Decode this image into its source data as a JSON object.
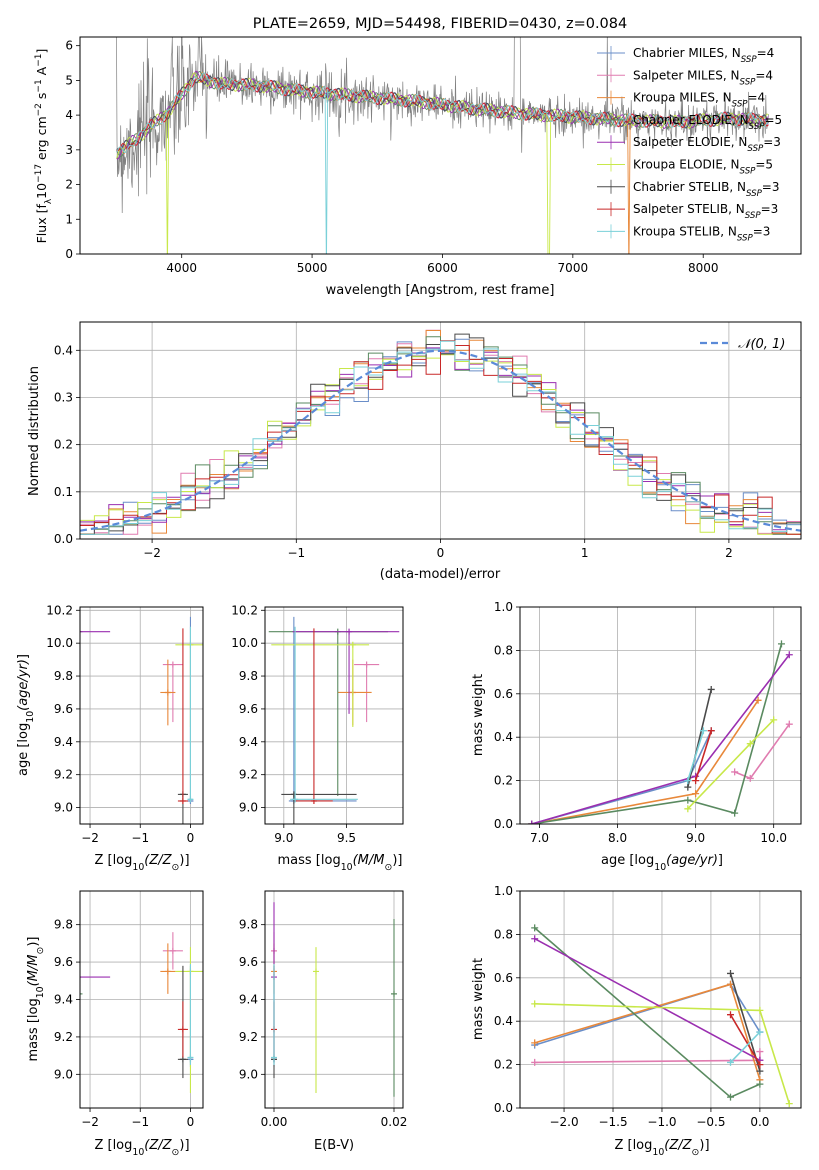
{
  "colors": {
    "Chabrier MILES": "#6a8ec8",
    "Salpeter MILES": "#e07cb0",
    "Kroupa MILES": "#e8883a",
    "Chabrier ELODIE": "#5a8a60",
    "Salpeter ELODIE": "#9a2fb0",
    "Kroupa ELODIE": "#c8e84a",
    "Chabrier STELIB": "#4a4a4a",
    "Salpeter STELIB": "#c82828",
    "Kroupa STELIB": "#7ad0d8",
    "data": "#808080",
    "gaussian": "#5a8ad8"
  },
  "chart_data": [
    {
      "id": "spectrum",
      "type": "line",
      "title": "PLATE=2659, MJD=54498, FIBERID=0430, z=0.084",
      "xlabel": "wavelength [Angstrom, rest frame]",
      "ylabel": "Flux [f_λ 10^{-17} erg cm^{-2} s^{-1} A^{-1}]",
      "xlim": [
        3220,
        8750
      ],
      "ylim": [
        0,
        6.25
      ],
      "xticks": [
        4000,
        5000,
        6000,
        7000,
        8000
      ],
      "yticks": [
        0,
        1,
        2,
        3,
        4,
        5,
        6
      ],
      "legend_position": "top-right",
      "legend": [
        {
          "label": "Chabrier MILES, N_SSP=4",
          "model": "Chabrier MILES"
        },
        {
          "label": "Salpeter MILES, N_SSP=4",
          "model": "Salpeter MILES"
        },
        {
          "label": "Kroupa MILES, N_SSP=4",
          "model": "Kroupa MILES"
        },
        {
          "label": "Chabrier ELODIE, N_SSP=5",
          "model": "Chabrier ELODIE"
        },
        {
          "label": "Salpeter ELODIE, N_SSP=3",
          "model": "Salpeter ELODIE"
        },
        {
          "label": "Kroupa ELODIE, N_SSP=5",
          "model": "Kroupa ELODIE"
        },
        {
          "label": "Chabrier STELIB, N_SSP=3",
          "model": "Chabrier STELIB"
        },
        {
          "label": "Salpeter STELIB, N_SSP=3",
          "model": "Salpeter STELIB"
        },
        {
          "label": "Kroupa STELIB, N_SSP=3",
          "model": "Kroupa STELIB"
        }
      ],
      "continuum": {
        "x": [
          3500,
          3650,
          3800,
          3900,
          4000,
          4100,
          4300,
          4600,
          4900,
          5200,
          5500,
          5800,
          6200,
          6600,
          7000,
          7400,
          7800,
          8200,
          8500
        ],
        "y": [
          2.9,
          3.3,
          3.8,
          4.1,
          4.6,
          5.1,
          4.9,
          4.85,
          4.7,
          4.6,
          4.5,
          4.4,
          4.2,
          4.05,
          3.95,
          3.85,
          3.8,
          3.9,
          3.85
        ]
      }
    },
    {
      "id": "residuals",
      "type": "bar",
      "xlabel": "(data-model)/error",
      "ylabel": "Normed distribution",
      "xlim": [
        -2.5,
        2.5
      ],
      "ylim": [
        0,
        0.46
      ],
      "xticks": [
        -2,
        -1,
        0,
        1,
        2
      ],
      "yticks": [
        0.0,
        0.1,
        0.2,
        0.3,
        0.4
      ],
      "bin_width": 0.1,
      "gaussian_label": "𝒩(0, 1)",
      "legend_position": "top-right"
    },
    {
      "id": "age-z",
      "type": "scatter",
      "xlabel": "Z [log10(Z/Z⊙)]",
      "ylabel": "age  [log10(age/yr)]",
      "xlim": [
        -2.2,
        0.25
      ],
      "ylim": [
        8.9,
        10.22
      ],
      "xticks": [
        -2,
        -1,
        0
      ],
      "yticks": [
        9.0,
        9.2,
        9.4,
        9.6,
        9.8,
        10.0,
        10.2
      ]
    },
    {
      "id": "age-mass",
      "type": "scatter",
      "xlabel": "mass [log10(M/M⊙)]",
      "ylabel": "",
      "xlim": [
        8.85,
        9.95
      ],
      "ylim": [
        8.9,
        10.22
      ],
      "xticks": [
        9.0,
        9.5
      ],
      "yticks": [
        9.0,
        9.2,
        9.4,
        9.6,
        9.8,
        10.0,
        10.2
      ]
    },
    {
      "id": "massweight-age",
      "type": "line",
      "xlabel": "age  [log10(age/yr)]",
      "ylabel": "mass weight",
      "xlim": [
        6.75,
        10.35
      ],
      "ylim": [
        0,
        1.0
      ],
      "xticks": [
        7,
        8,
        9,
        10
      ],
      "yticks": [
        0.0,
        0.2,
        0.4,
        0.6,
        0.8,
        1.0
      ]
    },
    {
      "id": "mass-z",
      "type": "scatter",
      "xlabel": "Z [log10(Z/Z⊙)]",
      "ylabel": "mass [log10(M/M⊙)]",
      "xlim": [
        -2.2,
        0.25
      ],
      "ylim": [
        8.82,
        9.98
      ],
      "xticks": [
        -2,
        -1,
        0
      ],
      "yticks": [
        9.0,
        9.2,
        9.4,
        9.6,
        9.8
      ]
    },
    {
      "id": "mass-ebv",
      "type": "scatter",
      "xlabel": "E(B-V)",
      "ylabel": "",
      "xlim": [
        -0.0015,
        0.0215
      ],
      "ylim": [
        8.82,
        9.98
      ],
      "xticks": [
        0.0,
        0.02
      ],
      "yticks": [
        9.0,
        9.2,
        9.4,
        9.6,
        9.8
      ]
    },
    {
      "id": "massweight-z",
      "type": "line",
      "xlabel": "Z [log10(Z/Z⊙)]",
      "ylabel": "mass weight",
      "xlim": [
        -2.45,
        0.42
      ],
      "ylim": [
        0,
        1.0
      ],
      "xticks": [
        -2.0,
        -1.5,
        -1.0,
        -0.5,
        0.0
      ],
      "yticks": [
        0.0,
        0.2,
        0.4,
        0.6,
        0.8,
        1.0
      ]
    }
  ],
  "models": [
    {
      "name": "Chabrier MILES",
      "Z": 0.0,
      "age": 9.04,
      "mass": 9.08,
      "ebv": 0.0,
      "age_err": [
        0.0,
        1.12
      ],
      "Z_err": [
        0.05,
        0.05
      ],
      "mass_err": [
        0.04,
        0.5
      ],
      "mw_age": [
        [
          6.9,
          0.0
        ],
        [
          8.9,
          0.2
        ],
        [
          9.2,
          0.43
        ]
      ],
      "mw_Z": [
        [
          -2.3,
          0.29
        ],
        [
          -0.3,
          0.57
        ],
        [
          0.0,
          0.35
        ]
      ]
    },
    {
      "name": "Salpeter MILES",
      "Z": -0.35,
      "age": 9.87,
      "mass": 9.66,
      "ebv": 0.0,
      "age_err": [
        0.35,
        0.0
      ],
      "Z_err": [
        0.2,
        0.2
      ],
      "mass_err": [
        0.1,
        0.1
      ],
      "mw_age": [
        [
          9.5,
          0.24
        ],
        [
          9.7,
          0.21
        ],
        [
          10.2,
          0.46
        ]
      ],
      "mw_Z": [
        [
          -2.3,
          0.21
        ],
        [
          0.0,
          0.22
        ],
        [
          0.0,
          0.26
        ]
      ]
    },
    {
      "name": "Kroupa MILES",
      "Z": -0.45,
      "age": 9.7,
      "mass": 9.55,
      "ebv": 0.0,
      "age_err": [
        0.2,
        0.2
      ],
      "Z_err": [
        0.15,
        0.15
      ],
      "mass_err": [
        0.12,
        0.15
      ],
      "mw_age": [
        [
          6.9,
          0.0
        ],
        [
          9.0,
          0.14
        ],
        [
          9.8,
          0.57
        ]
      ],
      "mw_Z": [
        [
          -2.3,
          0.3
        ],
        [
          -0.3,
          0.57
        ],
        [
          0.0,
          0.13
        ]
      ]
    },
    {
      "name": "Chabrier ELODIE",
      "Z": -2.3,
      "age": 10.07,
      "mass": 9.43,
      "ebv": 0.02,
      "age_err": [
        1.0,
        0.0
      ],
      "Z_err": [
        0.15,
        0.15
      ],
      "mass_err": [
        0.55,
        0.4
      ],
      "mw_age": [
        [
          6.9,
          0.0
        ],
        [
          8.9,
          0.11
        ],
        [
          9.5,
          0.05
        ],
        [
          10.1,
          0.83
        ]
      ],
      "mw_Z": [
        [
          -2.3,
          0.83
        ],
        [
          -0.3,
          0.05
        ],
        [
          0.0,
          0.11
        ]
      ]
    },
    {
      "name": "Salpeter ELODIE",
      "Z": -2.3,
      "age": 10.07,
      "mass": 9.52,
      "ebv": 0.0,
      "age_err": [
        0.5,
        0.0
      ],
      "Z_err": [
        0.7,
        0.7
      ],
      "mass_err": [
        0.45,
        0.4
      ],
      "mw_age": [
        [
          6.9,
          0.0
        ],
        [
          9.0,
          0.22
        ],
        [
          10.2,
          0.78
        ]
      ],
      "mw_Z": [
        [
          -2.3,
          0.78
        ],
        [
          0.0,
          0.22
        ]
      ]
    },
    {
      "name": "Kroupa ELODIE",
      "Z": 0.0,
      "age": 9.99,
      "mass": 9.55,
      "ebv": 0.007,
      "age_err": [
        0.5,
        0.0
      ],
      "Z_err": [
        0.3,
        0.3
      ],
      "mass_err": [
        0.65,
        0.13
      ],
      "mw_age": [
        [
          8.9,
          0.07
        ],
        [
          9.7,
          0.37
        ],
        [
          10.0,
          0.48
        ]
      ],
      "mw_Z": [
        [
          -2.3,
          0.48
        ],
        [
          0.0,
          0.45
        ],
        [
          0.3,
          0.02
        ]
      ]
    },
    {
      "name": "Chabrier STELIB",
      "Z": -0.15,
      "age": 9.08,
      "mass": 9.08,
      "ebv": 0.0,
      "age_err": [
        1.0,
        0.0
      ],
      "Z_err": [
        0.1,
        0.1
      ],
      "mass_err": [
        0.1,
        0.5
      ],
      "mw_age": [
        [
          8.9,
          0.17
        ],
        [
          9.2,
          0.62
        ]
      ],
      "mw_Z": [
        [
          -0.3,
          0.62
        ],
        [
          0.0,
          0.17
        ]
      ]
    },
    {
      "name": "Salpeter STELIB",
      "Z": -0.15,
      "age": 9.04,
      "mass": 9.24,
      "ebv": 0.0,
      "age_err": [
        0.0,
        1.05
      ],
      "Z_err": [
        0.1,
        0.1
      ],
      "mass_err": [
        0.15,
        0.15
      ],
      "mw_age": [
        [
          9.0,
          0.2
        ],
        [
          9.2,
          0.43
        ]
      ],
      "mw_Z": [
        [
          -0.3,
          0.43
        ],
        [
          0.0,
          0.2
        ]
      ]
    },
    {
      "name": "Kroupa STELIB",
      "Z": 0.0,
      "age": 9.05,
      "mass": 9.09,
      "ebv": 0.0,
      "age_err": [
        0.0,
        1.05
      ],
      "Z_err": [
        0.05,
        0.05
      ],
      "mass_err": [
        0.04,
        0.5
      ],
      "mw_age": [
        [
          8.9,
          0.2
        ],
        [
          9.1,
          0.43
        ]
      ],
      "mw_Z": [
        [
          -0.3,
          0.21
        ],
        [
          0.0,
          0.35
        ]
      ]
    }
  ]
}
